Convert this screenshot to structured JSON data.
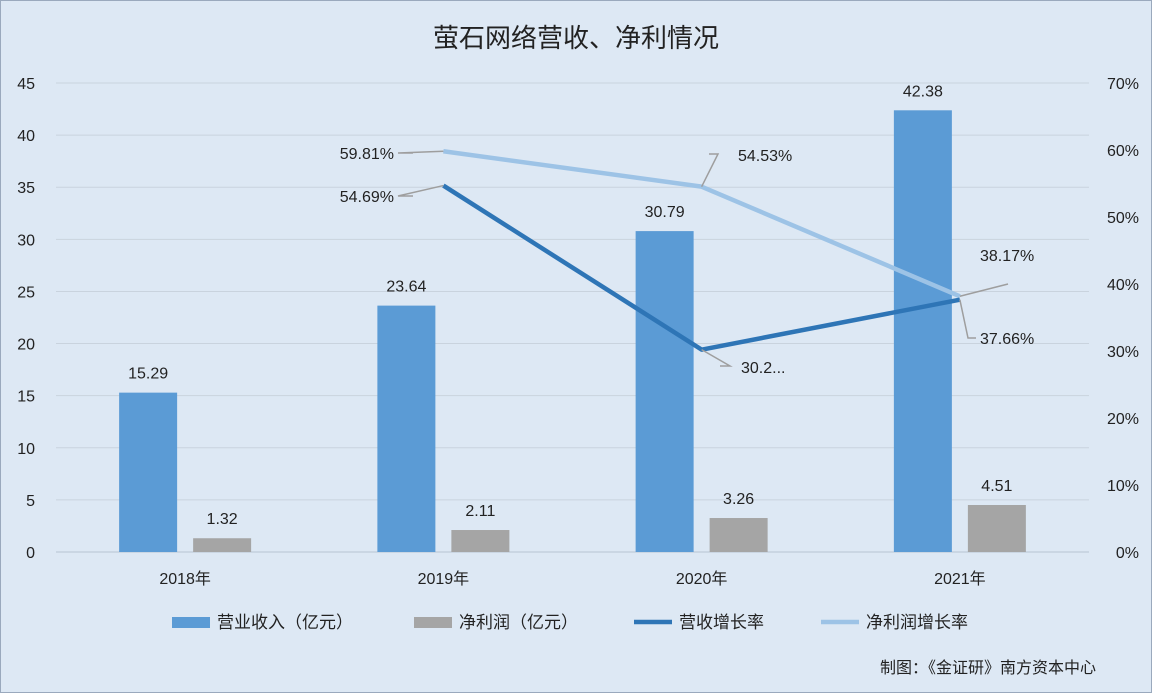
{
  "chart_data": {
    "type": "bar",
    "title": "萤石网络营收、净利情况",
    "categories": [
      "2018年",
      "2019年",
      "2020年",
      "2021年"
    ],
    "left_axis": {
      "min": 0,
      "max": 45,
      "step": 5,
      "ticks": [
        "0",
        "5",
        "10",
        "15",
        "20",
        "25",
        "30",
        "35",
        "40",
        "45"
      ]
    },
    "right_axis": {
      "min": 0,
      "max": 70,
      "step": 10,
      "ticks": [
        "0%",
        "10%",
        "20%",
        "30%",
        "40%",
        "50%",
        "60%",
        "70%"
      ]
    },
    "grid": true,
    "legend_position": "bottom",
    "series": [
      {
        "name": "营业收入（亿元）",
        "kind": "bar",
        "axis": "left",
        "color": "#5b9bd5",
        "values": [
          15.29,
          23.64,
          30.79,
          42.38
        ],
        "labels": [
          "15.29",
          "23.64",
          "30.79",
          "42.38"
        ]
      },
      {
        "name": "净利润（亿元）",
        "kind": "bar",
        "axis": "left",
        "color": "#a5a5a5",
        "values": [
          1.32,
          2.11,
          3.26,
          4.51
        ],
        "labels": [
          "1.32",
          "2.11",
          "3.26",
          "4.51"
        ]
      },
      {
        "name": "营收增长率",
        "kind": "line",
        "axis": "right",
        "color": "#2e75b6",
        "values": [
          null,
          54.69,
          30.2,
          37.66
        ],
        "labels": [
          null,
          "54.69%",
          "30.2...",
          "37.66%"
        ]
      },
      {
        "name": "净利润增长率",
        "kind": "line",
        "axis": "right",
        "color": "#9dc3e6",
        "values": [
          null,
          59.81,
          54.53,
          38.17
        ],
        "labels": [
          null,
          "59.81%",
          "54.53%",
          "38.17%"
        ]
      }
    ]
  },
  "credit": "制图：《金证研》南方资本中心"
}
